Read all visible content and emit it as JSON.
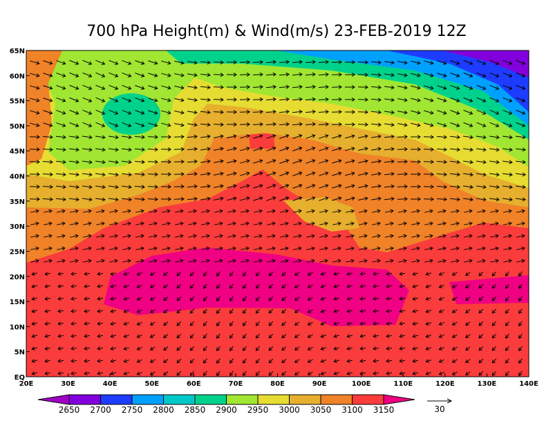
{
  "map": {
    "title": "700 hPa Height(m) & Wind(m/s) 23-FEB-2019 12Z",
    "lon_range": [
      20,
      140
    ],
    "lat_range": [
      0,
      65
    ],
    "x_ticks": [
      {
        "value": 20,
        "label": "20E"
      },
      {
        "value": 30,
        "label": "30E"
      },
      {
        "value": 40,
        "label": "40E"
      },
      {
        "value": 50,
        "label": "50E"
      },
      {
        "value": 60,
        "label": "60E"
      },
      {
        "value": 70,
        "label": "70E"
      },
      {
        "value": 80,
        "label": "80E"
      },
      {
        "value": 90,
        "label": "90E"
      },
      {
        "value": 100,
        "label": "100E"
      },
      {
        "value": 110,
        "label": "110E"
      },
      {
        "value": 120,
        "label": "120E"
      },
      {
        "value": 130,
        "label": "130E"
      },
      {
        "value": 140,
        "label": "140E"
      }
    ],
    "y_ticks": [
      {
        "value": 0,
        "label": "EQ"
      },
      {
        "value": 5,
        "label": "5N"
      },
      {
        "value": 10,
        "label": "10N"
      },
      {
        "value": 15,
        "label": "15N"
      },
      {
        "value": 20,
        "label": "20N"
      },
      {
        "value": 25,
        "label": "25N"
      },
      {
        "value": 30,
        "label": "30N"
      },
      {
        "value": 35,
        "label": "35N"
      },
      {
        "value": 40,
        "label": "40N"
      },
      {
        "value": 45,
        "label": "45N"
      },
      {
        "value": 50,
        "label": "50N"
      },
      {
        "value": 55,
        "label": "55N"
      },
      {
        "value": 60,
        "label": "60N"
      },
      {
        "value": 65,
        "label": "65N"
      }
    ],
    "colorbar": {
      "levels": [
        2650,
        2700,
        2750,
        2800,
        2850,
        2900,
        2950,
        3000,
        3050,
        3100,
        3150
      ],
      "colors": [
        "#a000c8",
        "#8200dc",
        "#1e3cff",
        "#00a0ff",
        "#00c8c8",
        "#00d28c",
        "#a0e632",
        "#e6dc32",
        "#e6af2d",
        "#f08228",
        "#fa3c3c",
        "#f00082"
      ]
    },
    "vector_key": {
      "label": "30"
    }
  }
}
